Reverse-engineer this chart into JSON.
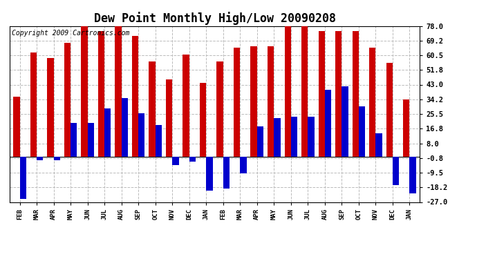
{
  "title": "Dew Point Monthly High/Low 20090208",
  "copyright": "Copyright 2009 Cartronics.com",
  "categories": [
    "FEB",
    "MAR",
    "APR",
    "MAY",
    "JUN",
    "JUL",
    "AUG",
    "SEP",
    "OCT",
    "NOV",
    "DEC",
    "JAN",
    "FEB",
    "MAR",
    "APR",
    "MAY",
    "JUN",
    "JUL",
    "AUG",
    "SEP",
    "OCT",
    "NOV",
    "DEC",
    "JAN"
  ],
  "highs": [
    36.0,
    62.0,
    59.0,
    68.0,
    78.0,
    75.0,
    78.0,
    72.0,
    57.0,
    46.0,
    61.0,
    44.0,
    57.0,
    65.0,
    66.0,
    66.0,
    78.0,
    78.0,
    75.0,
    75.0,
    75.0,
    65.0,
    56.0,
    34.0
  ],
  "lows": [
    -25.0,
    -2.0,
    -2.0,
    20.0,
    20.0,
    29.0,
    35.0,
    26.0,
    19.0,
    -5.0,
    -3.0,
    -20.0,
    -19.0,
    -10.0,
    18.0,
    23.0,
    24.0,
    24.0,
    40.0,
    42.0,
    30.0,
    14.0,
    -17.0,
    -22.0
  ],
  "bar_color_high": "#cc0000",
  "bar_color_low": "#0000cc",
  "background_color": "#ffffff",
  "yticks": [
    78.0,
    69.2,
    60.5,
    51.8,
    43.0,
    34.2,
    25.5,
    16.8,
    8.0,
    -0.8,
    -9.5,
    -18.2,
    -27.0
  ],
  "ylim": [
    -27.0,
    78.0
  ],
  "title_fontsize": 12,
  "copyright_fontsize": 7,
  "grid_color": "#bbbbbb",
  "bar_width": 0.38
}
